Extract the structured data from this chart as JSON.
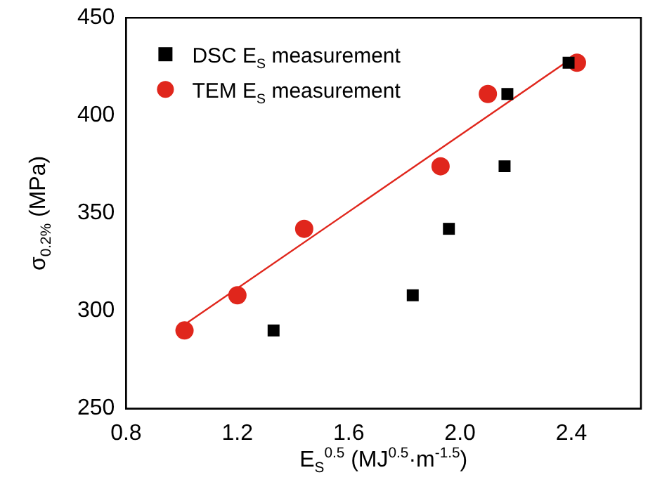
{
  "chart_data": {
    "type": "scatter",
    "xlabel": "E$_{S}$$^{0.5}$ (MJ$^{0.5}$·m$^{-1.5}$)",
    "ylabel": "σ$_{0.2%}$ (MPa)",
    "xlim": [
      0.8,
      2.65
    ],
    "xticks": [
      0.8,
      1.2,
      1.6,
      {
        "value": 2,
        "label": "2.0"
      },
      2.4
    ],
    "ylim": [
      250,
      450
    ],
    "yticks": [
      250,
      300,
      350,
      400,
      450
    ],
    "grid": false,
    "legend": "top left",
    "series": [
      {
        "name": "DSC E$_{S}$ measurement",
        "color": "#000000",
        "marker": "square",
        "x": [
          1.33,
          1.83,
          1.96,
          2.16,
          2.17,
          2.39
        ],
        "values": [
          290,
          308,
          342,
          374,
          411,
          427
        ]
      },
      {
        "name": "TEM E$_{S}$ measurement",
        "color": "#e0261c",
        "marker": "circle",
        "x": [
          1.01,
          1.2,
          1.44,
          1.93,
          2.1,
          2.42
        ],
        "values": [
          290,
          308,
          342,
          374,
          411,
          427
        ]
      },
      {
        "type": "line",
        "color": "#e0261c",
        "marker": "none",
        "x": [
          1.01,
          2.42
        ],
        "values": [
          293,
          431
        ]
      }
    ]
  }
}
